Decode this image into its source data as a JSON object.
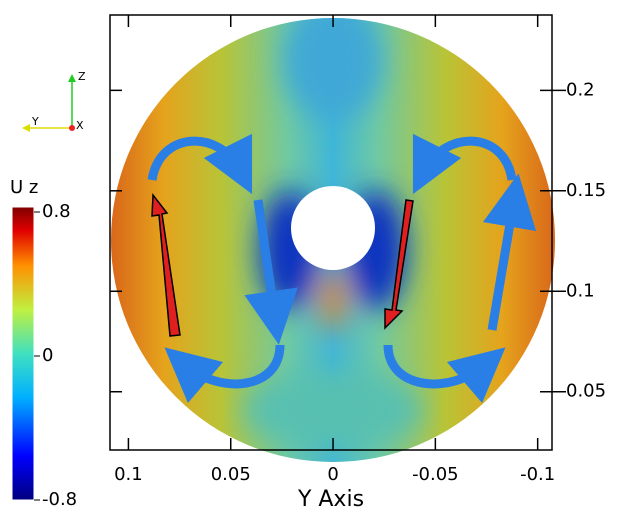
{
  "chart_data": {
    "type": "field",
    "x_label": "Y Axis",
    "xlim": [
      0.109,
      -0.107
    ],
    "xticks": [
      0.1,
      0.05,
      0,
      -0.05,
      -0.1
    ],
    "ylim": [
      0.021,
      0.2375
    ],
    "yticks": [
      0.05,
      0.1,
      0.15,
      0.2
    ],
    "colorbar": {
      "title": "U z",
      "clim": [
        -0.8,
        0.8
      ],
      "ticks": [
        0.8,
        0,
        -0.8
      ]
    },
    "orientation_axes": [
      "Z",
      "Y",
      "X"
    ]
  }
}
